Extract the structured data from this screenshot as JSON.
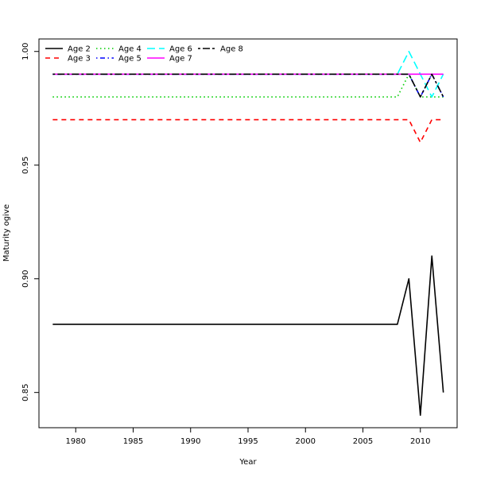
{
  "chart_data": {
    "type": "line",
    "title": "",
    "xlabel": "Year",
    "ylabel": "Maturity ogive",
    "xlim": [
      1976.8,
      2013.2
    ],
    "ylim": [
      0.8345,
      1.0055
    ],
    "x_ticks": [
      1980,
      1985,
      1990,
      1995,
      2000,
      2005,
      2010
    ],
    "y_ticks": [
      0.85,
      0.9,
      0.95,
      1.0
    ],
    "x_tick_labels": [
      "1980",
      "1985",
      "1990",
      "1995",
      "2000",
      "2005",
      "2010"
    ],
    "y_tick_labels": [
      "0.85",
      "0.90",
      "0.95",
      "1.00"
    ],
    "grid": false,
    "legend_position": "top-left",
    "x": [
      1978,
      1979,
      1980,
      1981,
      1982,
      1983,
      1984,
      1985,
      1986,
      1987,
      1988,
      1989,
      1990,
      1991,
      1992,
      1993,
      1994,
      1995,
      1996,
      1997,
      1998,
      1999,
      2000,
      2001,
      2002,
      2003,
      2004,
      2005,
      2006,
      2007,
      2008,
      2009,
      2010,
      2011,
      2012
    ],
    "series": [
      {
        "name": "Age 2",
        "color": "#000000",
        "dash": "solid",
        "values": [
          0.88,
          0.88,
          0.88,
          0.88,
          0.88,
          0.88,
          0.88,
          0.88,
          0.88,
          0.88,
          0.88,
          0.88,
          0.88,
          0.88,
          0.88,
          0.88,
          0.88,
          0.88,
          0.88,
          0.88,
          0.88,
          0.88,
          0.88,
          0.88,
          0.88,
          0.88,
          0.88,
          0.88,
          0.88,
          0.88,
          0.88,
          0.9,
          0.84,
          0.91,
          0.85
        ]
      },
      {
        "name": "Age 3",
        "color": "#ff0000",
        "dash": "dashed",
        "values": [
          0.97,
          0.97,
          0.97,
          0.97,
          0.97,
          0.97,
          0.97,
          0.97,
          0.97,
          0.97,
          0.97,
          0.97,
          0.97,
          0.97,
          0.97,
          0.97,
          0.97,
          0.97,
          0.97,
          0.97,
          0.97,
          0.97,
          0.97,
          0.97,
          0.97,
          0.97,
          0.97,
          0.97,
          0.97,
          0.97,
          0.97,
          0.97,
          0.96,
          0.97,
          0.97
        ]
      },
      {
        "name": "Age 4",
        "color": "#00cd00",
        "dash": "dotted",
        "values": [
          0.98,
          0.98,
          0.98,
          0.98,
          0.98,
          0.98,
          0.98,
          0.98,
          0.98,
          0.98,
          0.98,
          0.98,
          0.98,
          0.98,
          0.98,
          0.98,
          0.98,
          0.98,
          0.98,
          0.98,
          0.98,
          0.98,
          0.98,
          0.98,
          0.98,
          0.98,
          0.98,
          0.98,
          0.98,
          0.98,
          0.98,
          0.99,
          0.98,
          0.98,
          0.98
        ]
      },
      {
        "name": "Age 5",
        "color": "#0000ff",
        "dash": "dotdash",
        "values": [
          0.99,
          0.99,
          0.99,
          0.99,
          0.99,
          0.99,
          0.99,
          0.99,
          0.99,
          0.99,
          0.99,
          0.99,
          0.99,
          0.99,
          0.99,
          0.99,
          0.99,
          0.99,
          0.99,
          0.99,
          0.99,
          0.99,
          0.99,
          0.99,
          0.99,
          0.99,
          0.99,
          0.99,
          0.99,
          0.99,
          0.99,
          0.99,
          0.98,
          0.99,
          0.98
        ]
      },
      {
        "name": "Age 6",
        "color": "#00ffff",
        "dash": "longdash",
        "values": [
          0.99,
          0.99,
          0.99,
          0.99,
          0.99,
          0.99,
          0.99,
          0.99,
          0.99,
          0.99,
          0.99,
          0.99,
          0.99,
          0.99,
          0.99,
          0.99,
          0.99,
          0.99,
          0.99,
          0.99,
          0.99,
          0.99,
          0.99,
          0.99,
          0.99,
          0.99,
          0.99,
          0.99,
          0.99,
          0.99,
          0.99,
          1.0,
          0.99,
          0.98,
          0.99
        ]
      },
      {
        "name": "Age 7",
        "color": "#ff00ff",
        "dash": "solid",
        "values": [
          0.99,
          0.99,
          0.99,
          0.99,
          0.99,
          0.99,
          0.99,
          0.99,
          0.99,
          0.99,
          0.99,
          0.99,
          0.99,
          0.99,
          0.99,
          0.99,
          0.99,
          0.99,
          0.99,
          0.99,
          0.99,
          0.99,
          0.99,
          0.99,
          0.99,
          0.99,
          0.99,
          0.99,
          0.99,
          0.99,
          0.99,
          0.99,
          0.99,
          0.99,
          0.99
        ]
      },
      {
        "name": "Age 8",
        "color": "#000000",
        "dash": "twodash",
        "values": [
          0.99,
          0.99,
          0.99,
          0.99,
          0.99,
          0.99,
          0.99,
          0.99,
          0.99,
          0.99,
          0.99,
          0.99,
          0.99,
          0.99,
          0.99,
          0.99,
          0.99,
          0.99,
          0.99,
          0.99,
          0.99,
          0.99,
          0.99,
          0.99,
          0.99,
          0.99,
          0.99,
          0.99,
          0.99,
          0.99,
          0.99,
          0.99,
          0.98,
          0.99,
          0.98
        ]
      }
    ]
  }
}
